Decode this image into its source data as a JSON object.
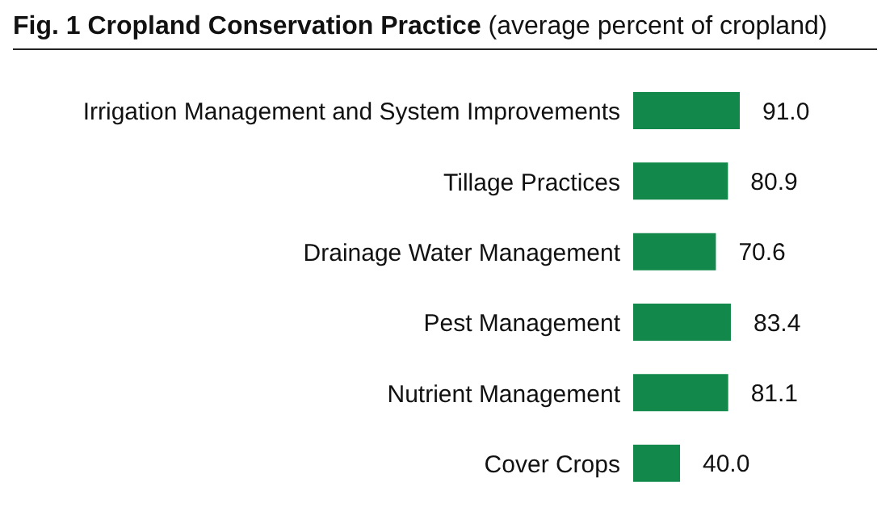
{
  "chart_data": {
    "type": "bar",
    "orientation": "horizontal",
    "title": "Fig. 1 Cropland Conservation Practice",
    "subtitle": "(average percent of cropland)",
    "categories": [
      "Irrigation Management and System Improvements",
      "Tillage Practices",
      "Drainage Water Management",
      "Pest Management",
      "Nutrient Management",
      "Cover Crops"
    ],
    "values": [
      91.0,
      80.9,
      70.6,
      83.4,
      81.1,
      40.0
    ],
    "value_labels": [
      "91.0",
      "80.9",
      "70.6",
      "83.4",
      "81.1",
      "40.0"
    ],
    "color": "#12894a",
    "grid": false
  }
}
